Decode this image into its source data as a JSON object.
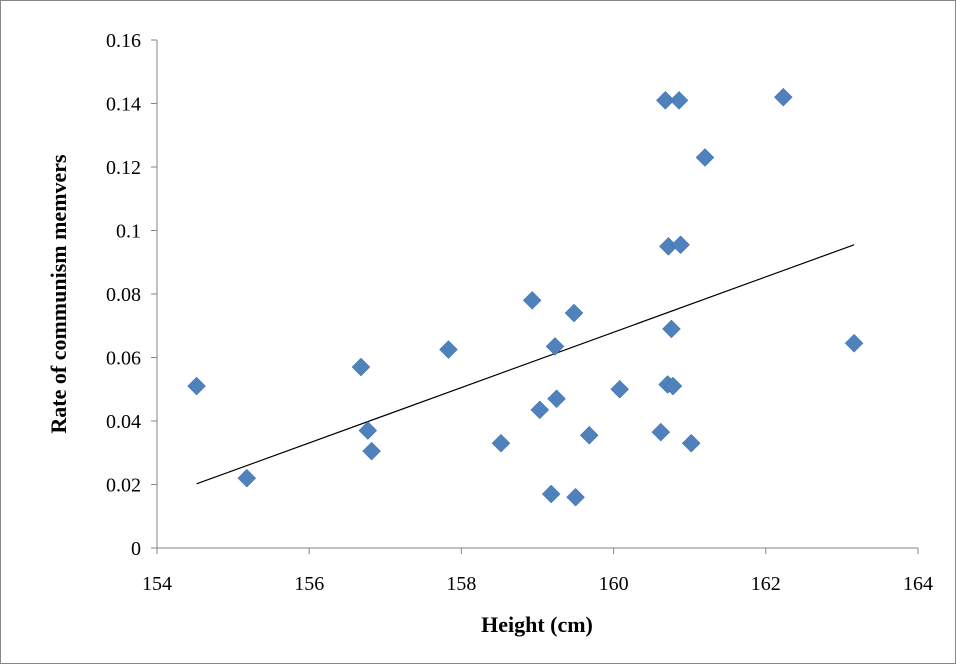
{
  "chart_data": {
    "type": "scatter",
    "title": "",
    "xlabel": "Height (cm)",
    "ylabel": "Rate of communism memvers",
    "xlim": [
      154,
      164
    ],
    "ylim": [
      0,
      0.16
    ],
    "x_ticks": [
      "154",
      "156",
      "158",
      "160",
      "162",
      "164"
    ],
    "y_ticks": [
      "0",
      "0.02",
      "0.04",
      "0.06",
      "0.08",
      "0.1",
      "0.12",
      "0.14",
      "0.16"
    ],
    "grid": false,
    "legend": "none",
    "marker": "diamond",
    "marker_color": "#4F81BD",
    "trendline_color": "#000000",
    "series": [
      {
        "points": [
          {
            "x": 154.52,
            "y": 0.051
          },
          {
            "x": 155.18,
            "y": 0.022
          },
          {
            "x": 156.68,
            "y": 0.057
          },
          {
            "x": 156.77,
            "y": 0.037
          },
          {
            "x": 156.82,
            "y": 0.0305
          },
          {
            "x": 157.83,
            "y": 0.0625
          },
          {
            "x": 158.52,
            "y": 0.033
          },
          {
            "x": 158.93,
            "y": 0.078
          },
          {
            "x": 159.03,
            "y": 0.0435
          },
          {
            "x": 159.18,
            "y": 0.017
          },
          {
            "x": 159.23,
            "y": 0.0635
          },
          {
            "x": 159.25,
            "y": 0.047
          },
          {
            "x": 159.48,
            "y": 0.074
          },
          {
            "x": 159.5,
            "y": 0.016
          },
          {
            "x": 159.68,
            "y": 0.0355
          },
          {
            "x": 160.08,
            "y": 0.05
          },
          {
            "x": 160.62,
            "y": 0.0365
          },
          {
            "x": 160.68,
            "y": 0.141
          },
          {
            "x": 160.71,
            "y": 0.0515
          },
          {
            "x": 160.72,
            "y": 0.095
          },
          {
            "x": 160.76,
            "y": 0.069
          },
          {
            "x": 160.78,
            "y": 0.051
          },
          {
            "x": 160.86,
            "y": 0.141
          },
          {
            "x": 160.88,
            "y": 0.0955
          },
          {
            "x": 161.02,
            "y": 0.033
          },
          {
            "x": 161.2,
            "y": 0.123
          },
          {
            "x": 162.23,
            "y": 0.142
          },
          {
            "x": 163.16,
            "y": 0.0645
          }
        ]
      }
    ],
    "trendline": {
      "type": "linear",
      "x": [
        154.52,
        163.16
      ],
      "y": [
        0.0202,
        0.0955
      ]
    }
  }
}
